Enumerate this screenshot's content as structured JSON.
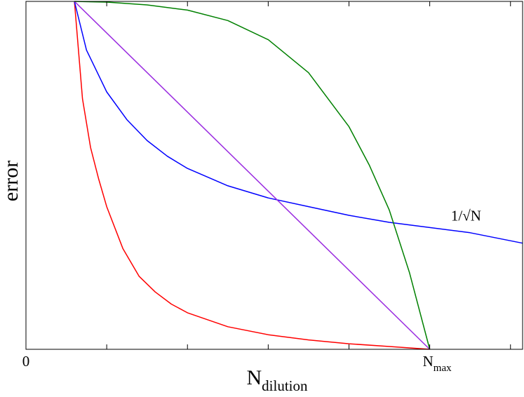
{
  "chart_data": {
    "type": "line",
    "xlabel": {
      "main": "N",
      "sub": "dilution"
    },
    "ylabel": "error",
    "x_tick_labels": [
      {
        "x": 0,
        "label": "0",
        "sub": ""
      },
      {
        "x": 10,
        "label": "N",
        "sub": "max"
      }
    ],
    "x_minor_ticks": [
      2,
      4,
      6,
      8,
      10,
      12
    ],
    "xlim": [
      0,
      12.3
    ],
    "ylim": [
      0,
      1.0
    ],
    "grid": false,
    "legend": "none",
    "annotations": [
      {
        "text": "1/√N",
        "series": "blue",
        "x": 10.9,
        "y": 0.37
      }
    ],
    "series": [
      {
        "color": "#ff0000",
        "points": [
          [
            1.2,
            1.0
          ],
          [
            1.4,
            0.72
          ],
          [
            1.6,
            0.58
          ],
          [
            1.8,
            0.49
          ],
          [
            2.0,
            0.41
          ],
          [
            2.4,
            0.29
          ],
          [
            2.8,
            0.21
          ],
          [
            3.2,
            0.165
          ],
          [
            3.6,
            0.13
          ],
          [
            4.0,
            0.105
          ],
          [
            5.0,
            0.065
          ],
          [
            6.0,
            0.042
          ],
          [
            7.0,
            0.027
          ],
          [
            8.0,
            0.016
          ],
          [
            9.0,
            0.008
          ],
          [
            10.0,
            0.0
          ]
        ]
      },
      {
        "color": "#0000ff",
        "points": [
          [
            1.2,
            1.0
          ],
          [
            1.5,
            0.86
          ],
          [
            2.0,
            0.74
          ],
          [
            2.5,
            0.66
          ],
          [
            3.0,
            0.6
          ],
          [
            3.5,
            0.555
          ],
          [
            4.0,
            0.52
          ],
          [
            5.0,
            0.47
          ],
          [
            6.0,
            0.435
          ],
          [
            7.0,
            0.41
          ],
          [
            8.0,
            0.385
          ],
          [
            9.0,
            0.365
          ],
          [
            10.0,
            0.35
          ],
          [
            11.0,
            0.335
          ],
          [
            12.3,
            0.305
          ]
        ]
      },
      {
        "color": "#9a2be0",
        "points": [
          [
            1.2,
            1.0
          ],
          [
            10.0,
            0.0
          ]
        ]
      },
      {
        "color": "#008000",
        "points": [
          [
            1.2,
            1.0
          ],
          [
            2.0,
            0.998
          ],
          [
            3.0,
            0.99
          ],
          [
            4.0,
            0.975
          ],
          [
            5.0,
            0.945
          ],
          [
            6.0,
            0.89
          ],
          [
            7.0,
            0.795
          ],
          [
            8.0,
            0.64
          ],
          [
            8.5,
            0.53
          ],
          [
            9.0,
            0.4
          ],
          [
            9.5,
            0.22
          ],
          [
            10.0,
            0.0
          ]
        ]
      }
    ]
  }
}
